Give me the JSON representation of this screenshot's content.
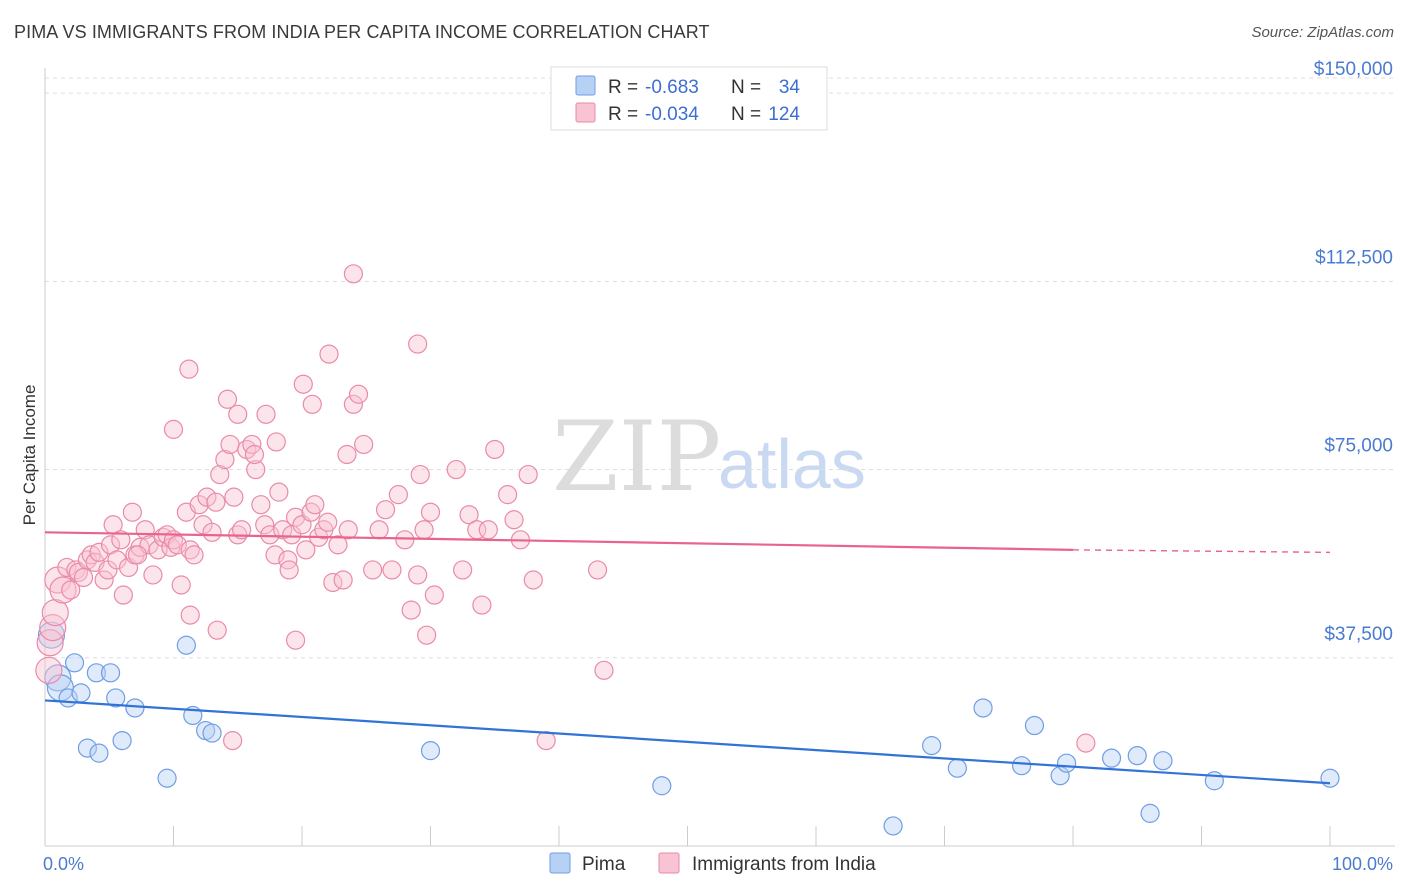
{
  "title": "PIMA VS IMMIGRANTS FROM INDIA PER CAPITA INCOME CORRELATION CHART",
  "source": "Source: ZipAtlas.com",
  "watermark": {
    "zip": "ZIP",
    "atlas": "atlas"
  },
  "colors": {
    "pima_fill": "#b7d1f5",
    "pima_stroke": "#6f9ee6",
    "pima_line": "#3173d6",
    "india_fill": "#f8c3d3",
    "india_stroke": "#ea8aaa",
    "india_line": "#e8638e",
    "axis_text": "#4a7bd0",
    "grid": "#dddddd"
  },
  "legend": {
    "rows": [
      {
        "r_label": "R =",
        "r_value": "-0.683",
        "n_label": "N =",
        "n_value": "34"
      },
      {
        "r_label": "R =",
        "r_value": "-0.034",
        "n_label": "N =",
        "n_value": "124"
      }
    ]
  },
  "chart_data": {
    "type": "scatter",
    "title": "PIMA VS IMMIGRANTS FROM INDIA PER CAPITA INCOME CORRELATION CHART",
    "xlabel": "",
    "ylabel": "Per Capita Income",
    "xlim": [
      0,
      100
    ],
    "ylim": [
      0,
      155000
    ],
    "x_tick_labels": [
      "0.0%",
      "100.0%"
    ],
    "y_ticks": [
      37500,
      75000,
      112500,
      150000
    ],
    "y_tick_labels": [
      "$37,500",
      "$75,000",
      "$112,500",
      "$150,000"
    ],
    "grid": true,
    "legend_position": "top-center",
    "series": [
      {
        "name": "Pima",
        "r": -0.683,
        "n": 34,
        "trend": {
          "x": [
            0,
            100
          ],
          "y": [
            29000,
            12500
          ]
        },
        "points": [
          [
            0.5,
            42000
          ],
          [
            1.0,
            33500
          ],
          [
            1.2,
            31500
          ],
          [
            1.8,
            29500
          ],
          [
            2.3,
            36500
          ],
          [
            2.8,
            30500
          ],
          [
            3.3,
            19500
          ],
          [
            4.0,
            34500
          ],
          [
            4.2,
            18500
          ],
          [
            5.1,
            34500
          ],
          [
            5.5,
            29500
          ],
          [
            6.0,
            21000
          ],
          [
            7.0,
            27500
          ],
          [
            9.5,
            13500
          ],
          [
            11.0,
            40000
          ],
          [
            11.5,
            26000
          ],
          [
            12.5,
            23000
          ],
          [
            13.0,
            22500
          ],
          [
            30.0,
            19000
          ],
          [
            48.0,
            12000
          ],
          [
            66.0,
            4000
          ],
          [
            69.0,
            20000
          ],
          [
            71.0,
            15500
          ],
          [
            73.0,
            27500
          ],
          [
            76.0,
            16000
          ],
          [
            77.0,
            24000
          ],
          [
            79.0,
            14000
          ],
          [
            79.5,
            16500
          ],
          [
            83.0,
            17500
          ],
          [
            85.0,
            18000
          ],
          [
            86.0,
            6500
          ],
          [
            87.0,
            17000
          ],
          [
            91.0,
            13000
          ],
          [
            100.0,
            13500
          ]
        ]
      },
      {
        "name": "Immigrants from India",
        "r": -0.034,
        "n": 124,
        "trend": {
          "x": [
            0,
            80
          ],
          "y": [
            62500,
            59000
          ],
          "dashed_to": {
            "x": 100,
            "y": 58500
          }
        },
        "points": [
          [
            0.3,
            35000
          ],
          [
            0.4,
            40500
          ],
          [
            0.6,
            43500
          ],
          [
            0.8,
            46500
          ],
          [
            1.0,
            53000
          ],
          [
            1.4,
            51000
          ],
          [
            1.7,
            55500
          ],
          [
            2.0,
            51000
          ],
          [
            2.4,
            55000
          ],
          [
            2.6,
            54500
          ],
          [
            3.0,
            53500
          ],
          [
            3.3,
            57000
          ],
          [
            3.6,
            58000
          ],
          [
            3.9,
            56500
          ],
          [
            4.2,
            58500
          ],
          [
            4.6,
            53000
          ],
          [
            4.9,
            55000
          ],
          [
            5.1,
            60000
          ],
          [
            5.3,
            64000
          ],
          [
            5.6,
            57000
          ],
          [
            5.9,
            61000
          ],
          [
            6.1,
            50000
          ],
          [
            6.5,
            55500
          ],
          [
            6.8,
            66500
          ],
          [
            7.0,
            58000
          ],
          [
            7.4,
            59500
          ],
          [
            7.8,
            63000
          ],
          [
            8.1,
            60000
          ],
          [
            8.4,
            54000
          ],
          [
            8.8,
            59000
          ],
          [
            9.2,
            61500
          ],
          [
            9.5,
            62000
          ],
          [
            9.8,
            59500
          ],
          [
            10.0,
            61000
          ],
          [
            10.3,
            60000
          ],
          [
            10.6,
            52000
          ],
          [
            11.0,
            66500
          ],
          [
            11.3,
            59000
          ],
          [
            11.6,
            58000
          ],
          [
            12.0,
            68000
          ],
          [
            12.3,
            64000
          ],
          [
            12.6,
            69500
          ],
          [
            13.0,
            62500
          ],
          [
            13.3,
            68500
          ],
          [
            13.6,
            74000
          ],
          [
            14.0,
            77000
          ],
          [
            14.4,
            80000
          ],
          [
            14.7,
            69500
          ],
          [
            15.0,
            62000
          ],
          [
            15.3,
            63000
          ],
          [
            15.7,
            79000
          ],
          [
            16.1,
            80000
          ],
          [
            16.4,
            75000
          ],
          [
            16.8,
            68000
          ],
          [
            17.1,
            64000
          ],
          [
            17.5,
            62000
          ],
          [
            17.9,
            58000
          ],
          [
            18.2,
            70500
          ],
          [
            18.5,
            63000
          ],
          [
            18.9,
            57000
          ],
          [
            19.2,
            62000
          ],
          [
            19.5,
            65500
          ],
          [
            20.0,
            64000
          ],
          [
            20.3,
            59000
          ],
          [
            20.7,
            66500
          ],
          [
            21.0,
            68000
          ],
          [
            21.3,
            61500
          ],
          [
            21.7,
            63000
          ],
          [
            22.0,
            64500
          ],
          [
            22.4,
            52500
          ],
          [
            22.8,
            60000
          ],
          [
            23.2,
            53000
          ],
          [
            23.6,
            63000
          ],
          [
            24.0,
            88000
          ],
          [
            24.4,
            90000
          ],
          [
            11.2,
            95000
          ],
          [
            10.0,
            83000
          ],
          [
            14.2,
            89000
          ],
          [
            15.0,
            86000
          ],
          [
            16.3,
            78000
          ],
          [
            17.2,
            86000
          ],
          [
            18.0,
            80500
          ],
          [
            19.0,
            55000
          ],
          [
            19.5,
            41000
          ],
          [
            20.1,
            92000
          ],
          [
            20.8,
            88000
          ],
          [
            22.1,
            98000
          ],
          [
            23.5,
            78000
          ],
          [
            24.8,
            80000
          ],
          [
            25.5,
            55000
          ],
          [
            26.0,
            63000
          ],
          [
            26.5,
            67000
          ],
          [
            27.0,
            55000
          ],
          [
            27.5,
            70000
          ],
          [
            28.0,
            61000
          ],
          [
            28.5,
            47000
          ],
          [
            29.0,
            54000
          ],
          [
            29.5,
            63000
          ],
          [
            30.0,
            66500
          ],
          [
            30.3,
            50000
          ],
          [
            29.2,
            74000
          ],
          [
            24.0,
            114000
          ],
          [
            29.0,
            100000
          ],
          [
            32.0,
            75000
          ],
          [
            32.5,
            55000
          ],
          [
            33.0,
            66000
          ],
          [
            33.6,
            63000
          ],
          [
            34.0,
            48000
          ],
          [
            36.0,
            70000
          ],
          [
            36.5,
            65000
          ],
          [
            37.0,
            61000
          ],
          [
            35.0,
            79000
          ],
          [
            37.6,
            74000
          ],
          [
            38.0,
            53000
          ],
          [
            43.0,
            55000
          ],
          [
            43.5,
            35000
          ],
          [
            39.0,
            21000
          ],
          [
            34.5,
            63000
          ],
          [
            11.3,
            46000
          ],
          [
            13.4,
            43000
          ],
          [
            14.6,
            21000
          ],
          [
            29.7,
            42000
          ],
          [
            7.2,
            58000
          ],
          [
            81.0,
            20500
          ]
        ]
      }
    ]
  },
  "bottom_legend": [
    {
      "label": "Pima"
    },
    {
      "label": "Immigrants from India"
    }
  ]
}
